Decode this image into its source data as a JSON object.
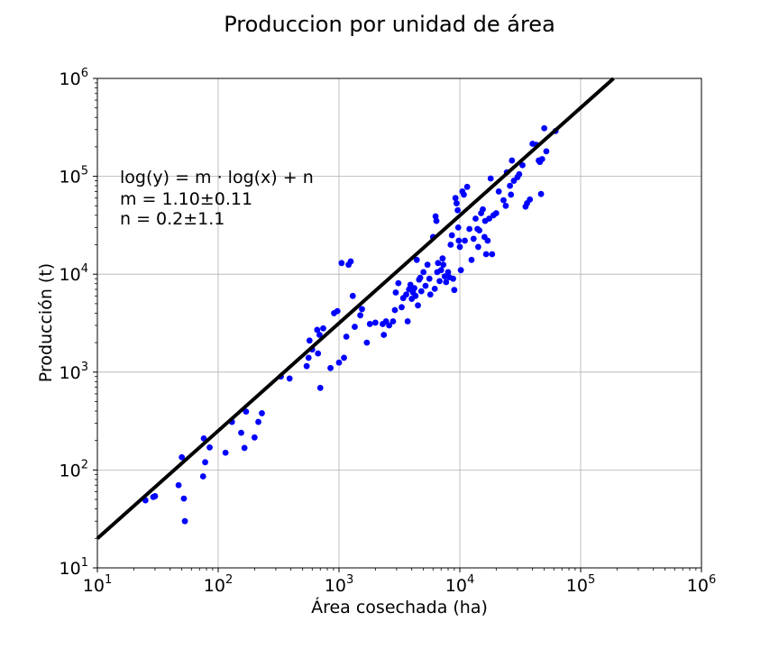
{
  "chart_data": {
    "type": "scatter",
    "title": "Produccion por unidad de área",
    "xlabel": "Área cosechada (ha)",
    "ylabel": "Producción (t)",
    "xscale": "log",
    "yscale": "log",
    "xlim": [
      10,
      1000000
    ],
    "ylim": [
      10,
      1000000
    ],
    "grid": true,
    "xticks": [
      {
        "base": "10",
        "exp": "1"
      },
      {
        "base": "10",
        "exp": "2"
      },
      {
        "base": "10",
        "exp": "3"
      },
      {
        "base": "10",
        "exp": "4"
      },
      {
        "base": "10",
        "exp": "5"
      },
      {
        "base": "10",
        "exp": "6"
      }
    ],
    "yticks": [
      {
        "base": "10",
        "exp": "1"
      },
      {
        "base": "10",
        "exp": "2"
      },
      {
        "base": "10",
        "exp": "3"
      },
      {
        "base": "10",
        "exp": "4"
      },
      {
        "base": "10",
        "exp": "5"
      },
      {
        "base": "10",
        "exp": "6"
      }
    ],
    "annotation": {
      "formula": "log(y) = m · log(x) + n",
      "m_line": "m = 1.10±0.11",
      "n_line": "n = 0.2±1.1"
    },
    "fit_line": {
      "slope": 1.1,
      "intercept": 0.2,
      "color": "#000000"
    },
    "point_color": "#0000ff",
    "points": [
      [
        25,
        49
      ],
      [
        29,
        53
      ],
      [
        30,
        54
      ],
      [
        47,
        70
      ],
      [
        50,
        135
      ],
      [
        52,
        51
      ],
      [
        53,
        30
      ],
      [
        75,
        86
      ],
      [
        76,
        210
      ],
      [
        78,
        120
      ],
      [
        85,
        170
      ],
      [
        115,
        150
      ],
      [
        130,
        310
      ],
      [
        155,
        240
      ],
      [
        165,
        168
      ],
      [
        170,
        395
      ],
      [
        200,
        215
      ],
      [
        215,
        310
      ],
      [
        230,
        380
      ],
      [
        330,
        900
      ],
      [
        390,
        860
      ],
      [
        540,
        1150
      ],
      [
        560,
        1400
      ],
      [
        570,
        2100
      ],
      [
        600,
        1700
      ],
      [
        660,
        2700
      ],
      [
        670,
        1550
      ],
      [
        690,
        2400
      ],
      [
        700,
        690
      ],
      [
        740,
        2800
      ],
      [
        850,
        1100
      ],
      [
        910,
        4000
      ],
      [
        970,
        4200
      ],
      [
        1000,
        1250
      ],
      [
        1050,
        13000
      ],
      [
        1100,
        1400
      ],
      [
        1150,
        2300
      ],
      [
        1200,
        12500
      ],
      [
        1250,
        13500
      ],
      [
        1300,
        6000
      ],
      [
        1350,
        2900
      ],
      [
        1500,
        3800
      ],
      [
        1550,
        4400
      ],
      [
        1700,
        2000
      ],
      [
        1800,
        3100
      ],
      [
        2000,
        3200
      ],
      [
        2300,
        3100
      ],
      [
        2350,
        2400
      ],
      [
        2450,
        3300
      ],
      [
        2600,
        3000
      ],
      [
        2800,
        3300
      ],
      [
        2900,
        4300
      ],
      [
        2950,
        6500
      ],
      [
        3100,
        8100
      ],
      [
        3300,
        4600
      ],
      [
        3400,
        5700
      ],
      [
        3600,
        6200
      ],
      [
        3700,
        3300
      ],
      [
        3800,
        7000
      ],
      [
        3900,
        7800
      ],
      [
        4000,
        5600
      ],
      [
        4100,
        6500
      ],
      [
        4200,
        7200
      ],
      [
        4300,
        6000
      ],
      [
        4400,
        14000
      ],
      [
        4500,
        4800
      ],
      [
        4600,
        8800
      ],
      [
        4700,
        9200
      ],
      [
        4800,
        6700
      ],
      [
        5000,
        10500
      ],
      [
        5200,
        7600
      ],
      [
        5400,
        12500
      ],
      [
        5600,
        9000
      ],
      [
        5700,
        6200
      ],
      [
        6000,
        24000
      ],
      [
        6200,
        7100
      ],
      [
        6300,
        39000
      ],
      [
        6400,
        35000
      ],
      [
        6500,
        10500
      ],
      [
        6600,
        13000
      ],
      [
        6800,
        8500
      ],
      [
        7000,
        11000
      ],
      [
        7200,
        14500
      ],
      [
        7300,
        12500
      ],
      [
        7500,
        9500
      ],
      [
        7700,
        8300
      ],
      [
        8000,
        10500
      ],
      [
        8200,
        9300
      ],
      [
        8400,
        20000
      ],
      [
        8600,
        25000
      ],
      [
        8800,
        9000
      ],
      [
        9000,
        6900
      ],
      [
        9200,
        60000
      ],
      [
        9400,
        53000
      ],
      [
        9600,
        45000
      ],
      [
        9700,
        30000
      ],
      [
        9800,
        22000
      ],
      [
        10000,
        19000
      ],
      [
        10200,
        11000
      ],
      [
        10500,
        70000
      ],
      [
        10800,
        65000
      ],
      [
        11000,
        22000
      ],
      [
        11500,
        78000
      ],
      [
        12000,
        29000
      ],
      [
        12500,
        14000
      ],
      [
        13000,
        23000
      ],
      [
        13500,
        37000
      ],
      [
        14000,
        29000
      ],
      [
        14200,
        19000
      ],
      [
        14500,
        28000
      ],
      [
        15000,
        42000
      ],
      [
        15500,
        46000
      ],
      [
        16000,
        24000
      ],
      [
        16200,
        35000
      ],
      [
        16500,
        16000
      ],
      [
        17000,
        22000
      ],
      [
        17500,
        37000
      ],
      [
        18000,
        95000
      ],
      [
        18500,
        16000
      ],
      [
        19000,
        40000
      ],
      [
        20000,
        42000
      ],
      [
        21000,
        70000
      ],
      [
        23000,
        57000
      ],
      [
        24000,
        50000
      ],
      [
        24500,
        110000
      ],
      [
        26000,
        80000
      ],
      [
        26500,
        65000
      ],
      [
        27000,
        145000
      ],
      [
        28000,
        90000
      ],
      [
        30000,
        98000
      ],
      [
        31000,
        105000
      ],
      [
        33000,
        130000
      ],
      [
        35000,
        49000
      ],
      [
        36000,
        53000
      ],
      [
        38000,
        58000
      ],
      [
        40000,
        215000
      ],
      [
        43000,
        210000
      ],
      [
        45000,
        145000
      ],
      [
        46000,
        140000
      ],
      [
        47000,
        66000
      ],
      [
        48000,
        150000
      ],
      [
        50000,
        310000
      ],
      [
        52000,
        180000
      ],
      [
        62000,
        290000
      ]
    ]
  }
}
